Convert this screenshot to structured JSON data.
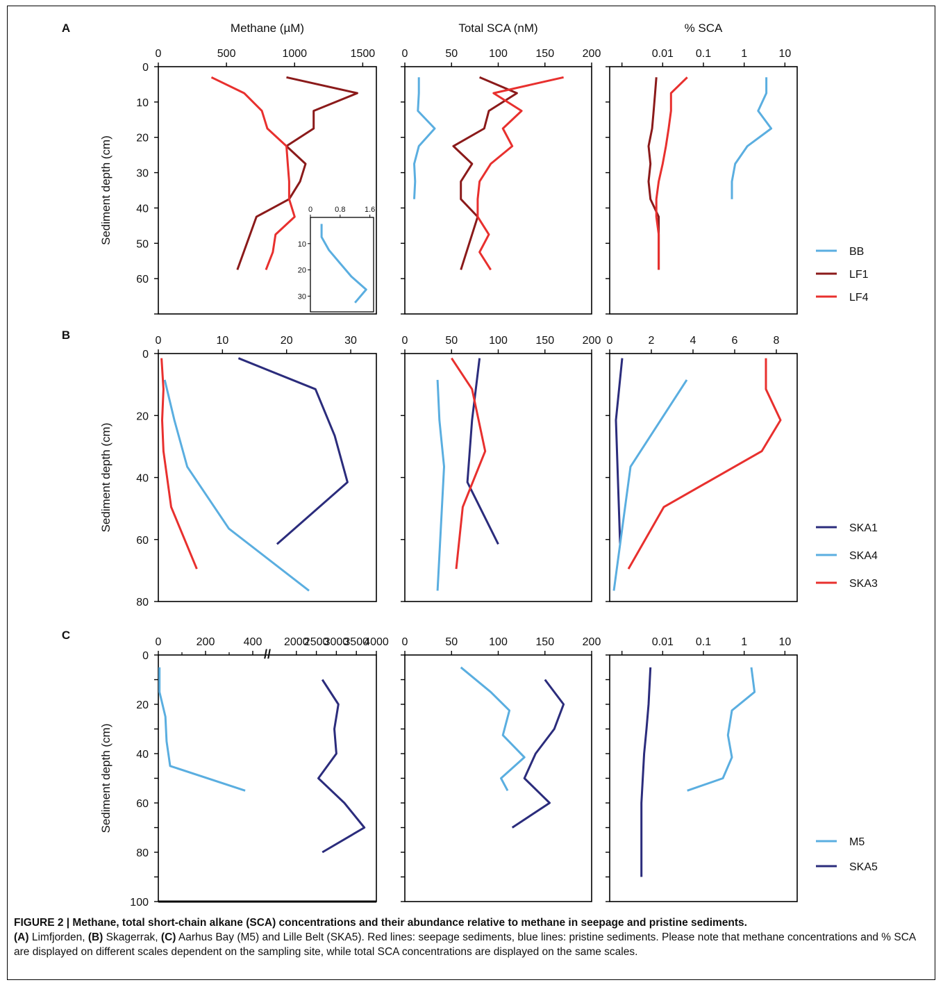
{
  "figure": {
    "caption_title": "FIGURE 2 | Methane, total short-chain alkane (SCA) concentrations and their abundance relative to methane in seepage and pristine sediments.",
    "caption_text": [
      {
        "tag": "(A)",
        "text": " Limfjorden, "
      },
      {
        "tag": "(B)",
        "text": " Skagerrak, "
      },
      {
        "tag": "(C)",
        "text": " Aarhus Bay (M5) and Lille Belt (SKA5). Red lines: seepage sediments, blue lines: pristine sediments. Please note that methane concentrations and % SCA are displayed on different scales dependent on the sampling site, while total SCA concentrations are displayed on the same scales."
      }
    ]
  },
  "colors": {
    "BB": "#5aaee0",
    "LF1": "#8b1a1a",
    "LF4": "#e8302e",
    "SKA1": "#2b2c7c",
    "SKA4": "#5aaee0",
    "SKA3": "#e8302e",
    "M5": "#5aaee0",
    "SKA5": "#2b2c7c"
  },
  "chart_data": [
    {
      "panel": "A",
      "type": "line",
      "title": "Methane (µM)",
      "ylabel": "Sediment depth (cm)",
      "xlim": [
        0,
        1600
      ],
      "ylim": [
        0,
        70
      ],
      "xticks": [
        "0",
        "500",
        "1000",
        "1500"
      ],
      "yticks": [
        "0",
        "10",
        "20",
        "30",
        "40",
        "50",
        "60"
      ],
      "series": [
        {
          "name": "LF1",
          "x": [
            940,
            1460,
            1140,
            1140,
            940,
            1080,
            1040,
            960,
            720,
            580
          ],
          "y": [
            3,
            7.5,
            12.5,
            17.5,
            22.5,
            27.5,
            32.5,
            37.5,
            42.5,
            57.5
          ]
        },
        {
          "name": "LF4",
          "x": [
            390,
            630,
            760,
            800,
            940,
            950,
            960,
            960,
            1000,
            860,
            840,
            790
          ],
          "y": [
            3,
            7.5,
            12.5,
            17.5,
            22.5,
            27.5,
            32.5,
            37.5,
            42.5,
            47.5,
            52.5,
            57.5
          ]
        }
      ]
    },
    {
      "panel": "A-inset",
      "type": "line",
      "xlim": [
        0,
        1.7
      ],
      "ylim": [
        0,
        36
      ],
      "xticks": [
        "0",
        "0.8",
        "1.6"
      ],
      "yticks": [
        "10",
        "20",
        "30"
      ],
      "series": [
        {
          "name": "BB",
          "x": [
            0.3,
            0.3,
            0.5,
            0.8,
            1.1,
            1.5,
            1.2
          ],
          "y": [
            2.5,
            7.5,
            12.5,
            17.5,
            22.5,
            27.5,
            32.5
          ]
        }
      ]
    },
    {
      "panel": "A",
      "type": "line",
      "title": "Total SCA (nM)",
      "xlim": [
        0,
        200
      ],
      "ylim": [
        0,
        70
      ],
      "xticks": [
        "0",
        "50",
        "100",
        "150",
        "200"
      ],
      "series": [
        {
          "name": "BB",
          "x": [
            15,
            15,
            14,
            32,
            15,
            10,
            11,
            10
          ],
          "y": [
            3,
            7.5,
            12.5,
            17.5,
            22.5,
            27.5,
            32.5,
            37.5
          ]
        },
        {
          "name": "LF1",
          "x": [
            80,
            120,
            90,
            85,
            52,
            72,
            60,
            60,
            78,
            60
          ],
          "y": [
            3,
            7.5,
            12.5,
            17.5,
            22.5,
            27.5,
            32.5,
            37.5,
            42.5,
            57.5
          ]
        },
        {
          "name": "LF4",
          "x": [
            170,
            95,
            125,
            105,
            115,
            92,
            80,
            78,
            78,
            90,
            80,
            92
          ],
          "y": [
            3,
            7.5,
            12.5,
            17.5,
            22.5,
            27.5,
            32.5,
            37.5,
            42.5,
            47.5,
            52.5,
            57.5
          ]
        }
      ]
    },
    {
      "panel": "A",
      "type": "line",
      "title": "% SCA",
      "xscale": "log",
      "xlim": [
        0.0005,
        20
      ],
      "ylim": [
        0,
        70
      ],
      "xticks": [
        "0.01",
        "0.1",
        "1",
        "10"
      ],
      "series": [
        {
          "name": "BB",
          "x": [
            3.5,
            3.5,
            2.2,
            4.6,
            1.2,
            0.6,
            0.5,
            0.5
          ],
          "y": [
            3,
            7.5,
            12.5,
            17.5,
            22.5,
            27.5,
            32.5,
            37.5
          ]
        },
        {
          "name": "LF1",
          "x": [
            0.007,
            0.0065,
            0.006,
            0.0055,
            0.0045,
            0.005,
            0.0045,
            0.005,
            0.008,
            0.008
          ],
          "y": [
            3,
            7.5,
            12.5,
            17.5,
            22.5,
            27.5,
            32.5,
            37.5,
            42.5,
            57.5
          ]
        },
        {
          "name": "LF4",
          "x": [
            0.04,
            0.016,
            0.016,
            0.014,
            0.012,
            0.01,
            0.008,
            0.007,
            0.007,
            0.008,
            0.008,
            0.008
          ],
          "y": [
            3,
            7.5,
            12.5,
            17.5,
            22.5,
            27.5,
            32.5,
            37.5,
            42.5,
            47.5,
            52.5,
            57.5
          ]
        }
      ]
    },
    {
      "panel": "B",
      "type": "line",
      "ylabel": "Sediment depth (cm)",
      "xlim": [
        0,
        34
      ],
      "ylim": [
        0,
        80
      ],
      "xticks": [
        "0",
        "10",
        "20",
        "30"
      ],
      "yticks": [
        "0",
        "20",
        "40",
        "60",
        "80"
      ],
      "series": [
        {
          "name": "SKA1",
          "x": [
            12.5,
            24.5,
            27.5,
            29.5,
            18.5
          ],
          "y": [
            1.5,
            11.5,
            26.5,
            41.5,
            61.5
          ]
        },
        {
          "name": "SKA4",
          "x": [
            1,
            2.5,
            4.5,
            11,
            23.5
          ],
          "y": [
            8.5,
            21.5,
            36.5,
            56.5,
            76.5
          ]
        },
        {
          "name": "SKA3",
          "x": [
            0.5,
            0.8,
            0.6,
            0.8,
            2,
            6
          ],
          "y": [
            1.5,
            11.5,
            21.5,
            31.5,
            49.5,
            69.5
          ]
        }
      ]
    },
    {
      "panel": "B",
      "type": "line",
      "xlim": [
        0,
        200
      ],
      "ylim": [
        0,
        80
      ],
      "xticks": [
        "0",
        "50",
        "100",
        "150",
        "200"
      ],
      "series": [
        {
          "name": "SKA1",
          "x": [
            80,
            72,
            67,
            100
          ],
          "y": [
            1.5,
            21.5,
            41.5,
            61.5
          ]
        },
        {
          "name": "SKA4",
          "x": [
            35,
            37,
            42,
            35
          ],
          "y": [
            8.5,
            21.5,
            36.5,
            76.5
          ]
        },
        {
          "name": "SKA3",
          "x": [
            50,
            72,
            86,
            62,
            55
          ],
          "y": [
            1.5,
            11.5,
            31.5,
            49.5,
            69.5
          ]
        }
      ]
    },
    {
      "panel": "B",
      "type": "line",
      "xlim": [
        0,
        9
      ],
      "ylim": [
        0,
        80
      ],
      "xticks": [
        "0",
        "2",
        "4",
        "6",
        "8"
      ],
      "series": [
        {
          "name": "SKA1",
          "x": [
            0.6,
            0.3,
            0.5
          ],
          "y": [
            1.5,
            21.5,
            61.5
          ]
        },
        {
          "name": "SKA4",
          "x": [
            3.7,
            1,
            0.2
          ],
          "y": [
            8.5,
            36.5,
            76.5
          ]
        },
        {
          "name": "SKA3",
          "x": [
            7.5,
            7.5,
            8.2,
            7.3,
            2.6,
            0.9
          ],
          "y": [
            1.5,
            11.5,
            21.5,
            31.5,
            49.5,
            69.5
          ]
        }
      ]
    },
    {
      "panel": "C",
      "type": "line",
      "ylabel": "Sediment depth (cm)",
      "xaxis_break": "//",
      "ylim": [
        0,
        100
      ],
      "yticks": [
        "0",
        "20",
        "40",
        "60",
        "80",
        "100"
      ],
      "xticks": [
        "0",
        "200",
        "400",
        "2000",
        "2500",
        "3000",
        "3500",
        "4000"
      ],
      "series": [
        {
          "name": "M5",
          "x": [
            5,
            5,
            30,
            35,
            50,
            720
          ],
          "y": [
            5,
            15,
            25,
            35,
            45,
            55
          ]
        },
        {
          "name": "SKA5",
          "x": [
            2650,
            3050,
            2950,
            3000,
            2550,
            3200,
            3700,
            2650
          ],
          "y": [
            10,
            20,
            30,
            40,
            50,
            60,
            70,
            80
          ]
        }
      ]
    },
    {
      "panel": "C",
      "type": "line",
      "xlim": [
        0,
        200
      ],
      "ylim": [
        0,
        100
      ],
      "xticks": [
        "0",
        "50",
        "100",
        "150",
        "200"
      ],
      "series": [
        {
          "name": "M5",
          "x": [
            60,
            92,
            112,
            105,
            128,
            103,
            110
          ],
          "y": [
            5,
            15,
            22.5,
            32.5,
            41.5,
            50,
            55
          ]
        },
        {
          "name": "SKA5",
          "x": [
            150,
            170,
            160,
            140,
            128,
            155,
            115
          ],
          "y": [
            10,
            20,
            30,
            40,
            50,
            60,
            70
          ]
        }
      ]
    },
    {
      "panel": "C",
      "type": "line",
      "xscale": "log",
      "xlim": [
        0.0005,
        20
      ],
      "ylim": [
        0,
        100
      ],
      "xticks": [
        "0.01",
        "0.1",
        "1",
        "10"
      ],
      "series": [
        {
          "name": "M5",
          "x": [
            1.5,
            1.8,
            0.5,
            0.4,
            0.5,
            0.3,
            0.04
          ],
          "y": [
            5,
            15,
            22.5,
            32.5,
            41.5,
            50,
            55
          ]
        },
        {
          "name": "SKA5",
          "x": [
            0.005,
            0.0045,
            0.004,
            0.0035,
            0.003,
            0.003,
            0.003
          ],
          "y": [
            5,
            20,
            30,
            40,
            60,
            75,
            90
          ]
        }
      ]
    }
  ],
  "legends": [
    {
      "panel": "A",
      "items": [
        {
          "name": "BB",
          "label": "BB"
        },
        {
          "name": "LF1",
          "label": "LF1"
        },
        {
          "name": "LF4",
          "label": "LF4"
        }
      ]
    },
    {
      "panel": "B",
      "items": [
        {
          "name": "SKA1",
          "label": "SKA1"
        },
        {
          "name": "SKA4",
          "label": "SKA4"
        },
        {
          "name": "SKA3",
          "label": "SKA3"
        }
      ]
    },
    {
      "panel": "C",
      "items": [
        {
          "name": "M5",
          "label": "M5"
        },
        {
          "name": "SKA5",
          "label": "SKA5"
        }
      ]
    }
  ],
  "panel_labels": [
    "A",
    "B",
    "C"
  ]
}
